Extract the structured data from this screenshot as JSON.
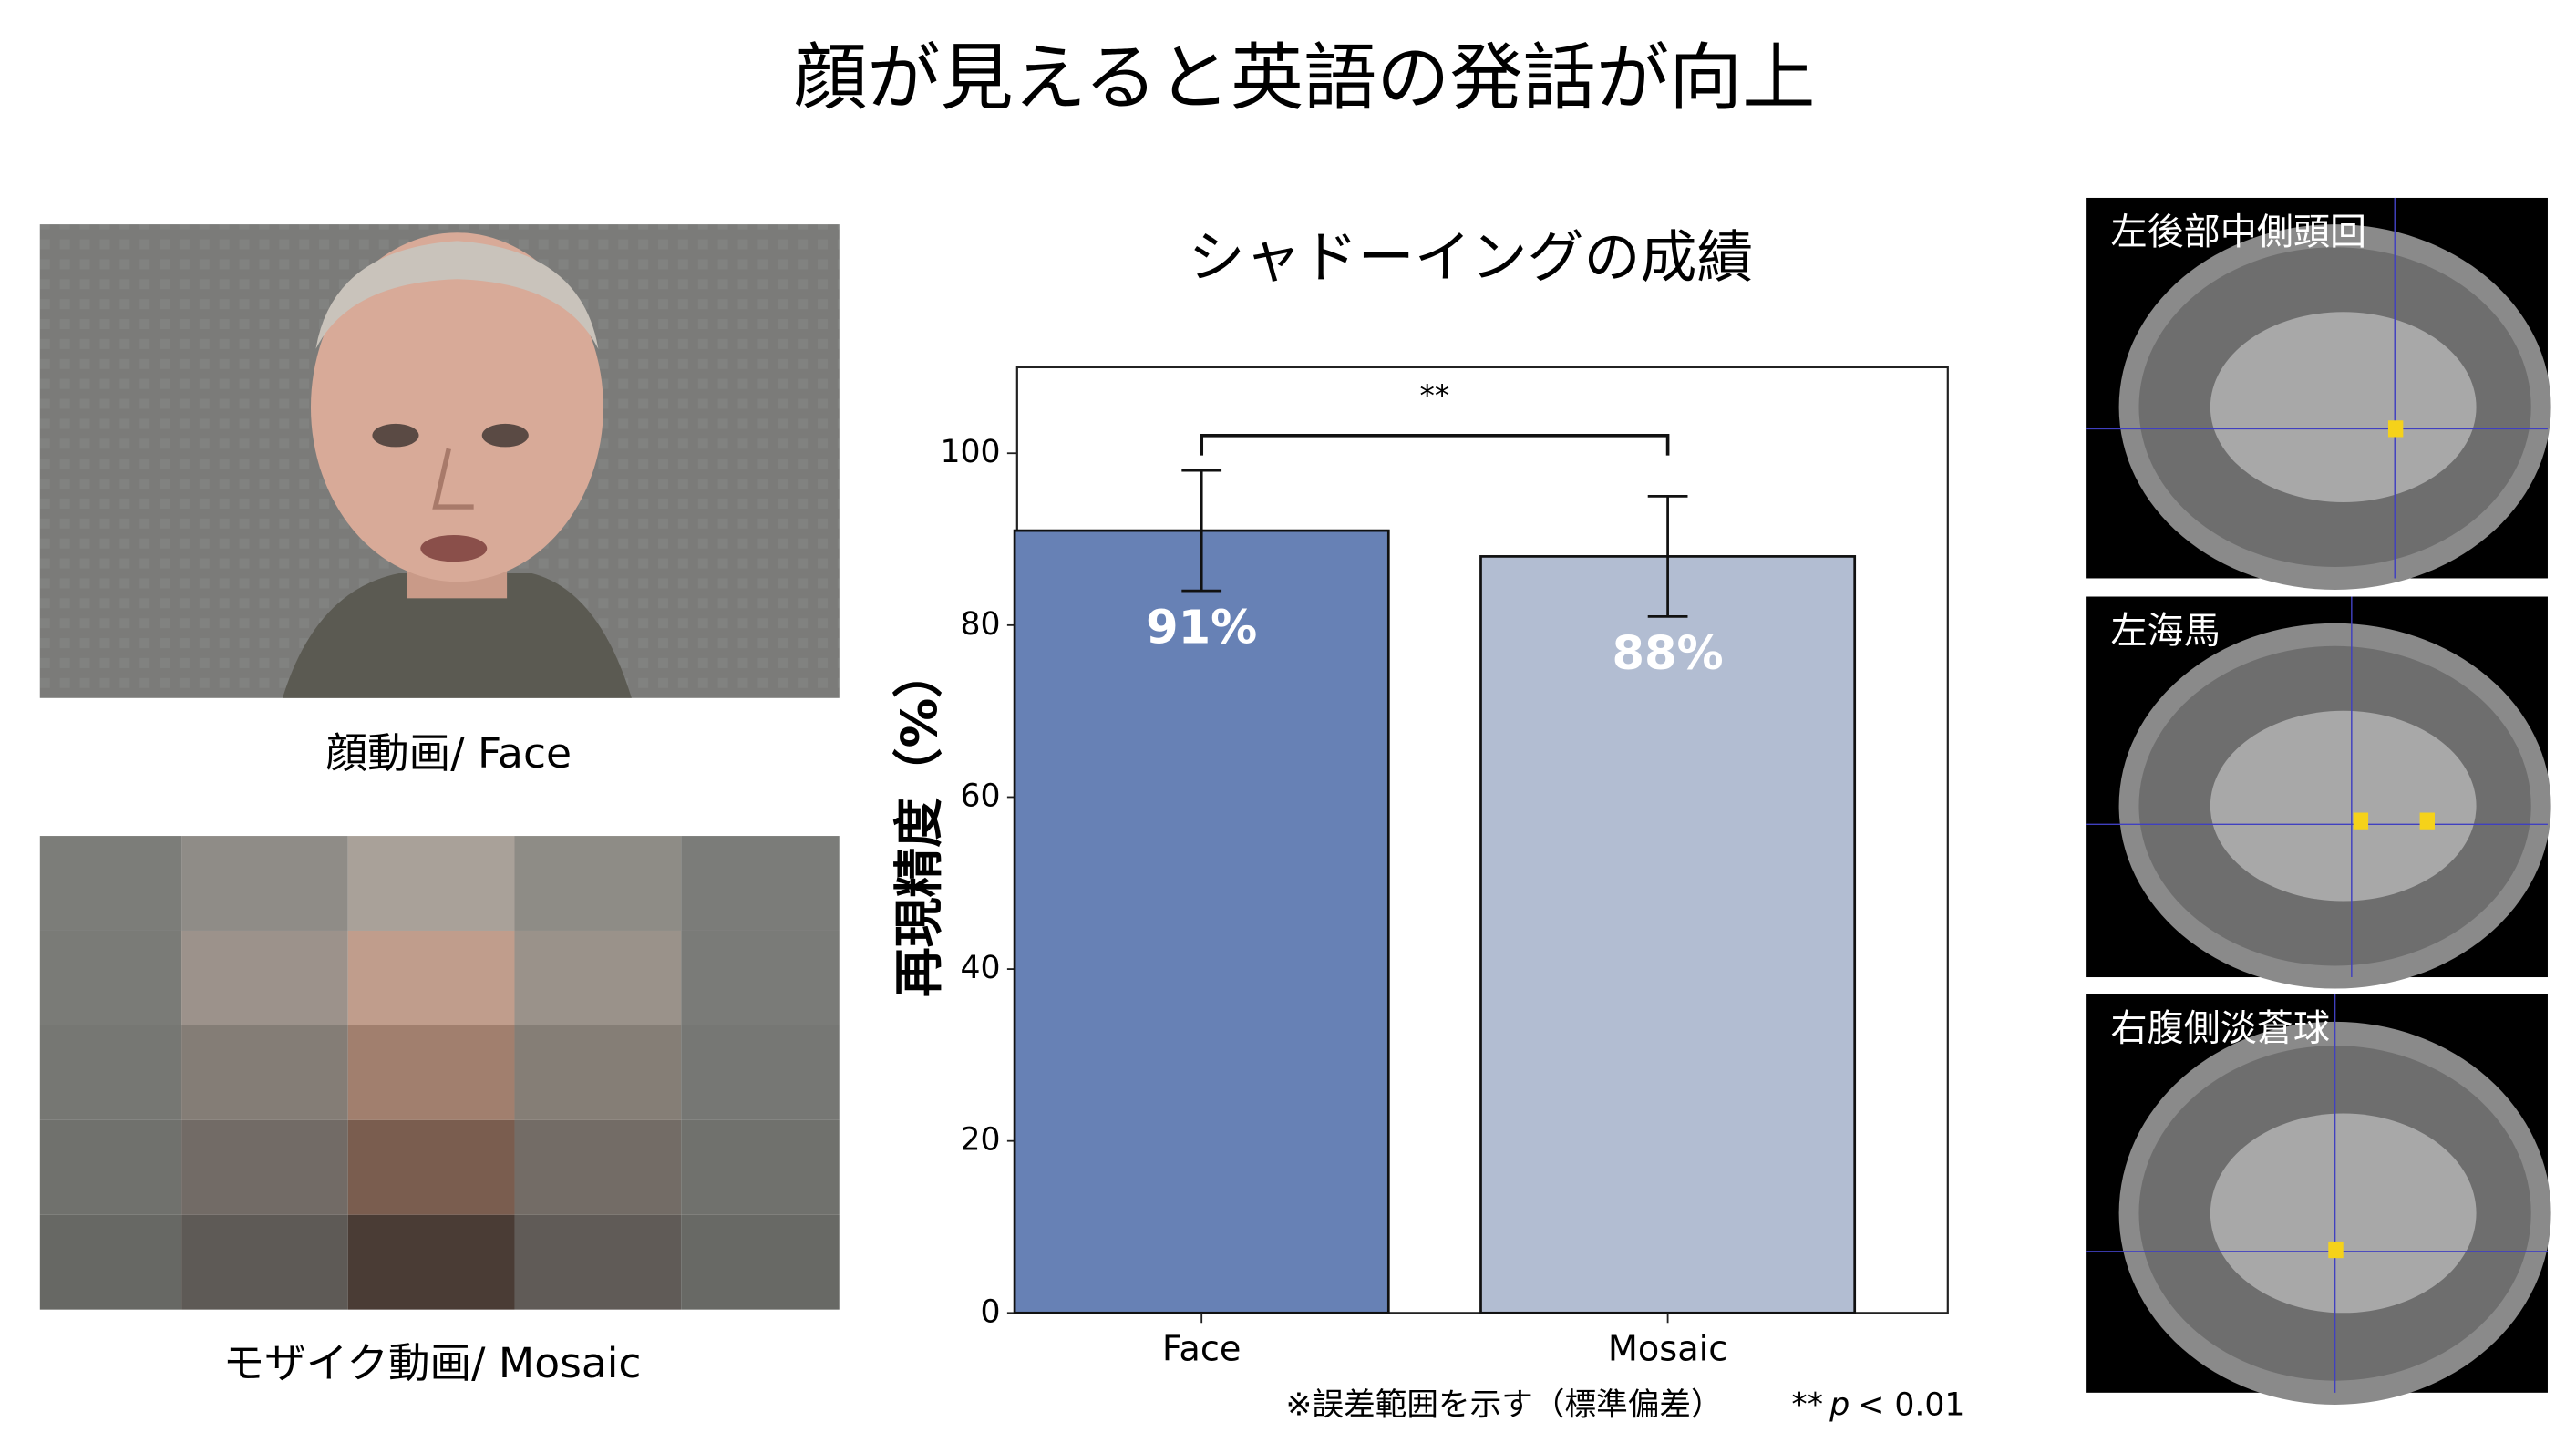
{
  "title": "顔が見えると英語の発話が向上",
  "face_caption": "顔動画/ Face",
  "mosaic_caption": "モザイク動画/ Mosaic",
  "brain_labels": [
    "左後部中側頭回",
    "左海馬",
    "右腹側淡蒼球"
  ],
  "chart_data": {
    "type": "bar",
    "title": "シャドーイングの成績",
    "y_label": "再現精度（%）",
    "categories": [
      "Face",
      "Mosaic"
    ],
    "values": [
      91,
      88
    ],
    "value_labels": [
      "91%",
      "88%"
    ],
    "errors": [
      7,
      7
    ],
    "colors": [
      "#6781b5",
      "#b2bdd2"
    ],
    "ylim": [
      0,
      110
    ],
    "yticks": [
      0,
      20,
      40,
      60,
      80,
      100
    ],
    "significance": "**",
    "footnote": "※誤差範囲を示す（標準偏差）",
    "footnote_sig": "**",
    "footnote_p": "p",
    "footnote_threshold": "< 0.01"
  }
}
